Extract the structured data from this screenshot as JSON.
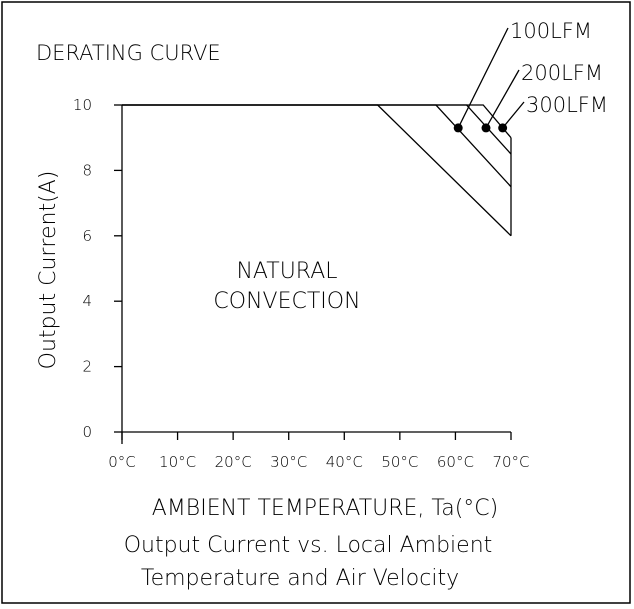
{
  "chart_data": {
    "type": "line",
    "title": "DERATING CURVE",
    "xlabel": "AMBIENT TEMPERATURE, Ta(°C)",
    "ylabel": "Output Current(A)",
    "caption": [
      "Output Current vs. Local Ambient",
      "Temperature and Air Velocity"
    ],
    "x_ticks": [
      0,
      10,
      20,
      30,
      40,
      50,
      60,
      70
    ],
    "x_tick_labels": [
      "0°C",
      "10°C",
      "20°C",
      "30°C",
      "40°C",
      "50°C",
      "60°C",
      "70°C"
    ],
    "y_ticks": [
      0,
      2,
      4,
      6,
      8,
      10
    ],
    "y_tick_labels": [
      "0",
      "2",
      "4",
      "6",
      "8",
      "10"
    ],
    "xlim": [
      0,
      70
    ],
    "ylim": [
      0,
      10
    ],
    "grid": false,
    "region_label": [
      "NATURAL",
      "CONVECTION"
    ],
    "series": [
      {
        "name": "NATURAL CONVECTION",
        "x": [
          0,
          46,
          70
        ],
        "y": [
          10,
          10,
          6
        ]
      },
      {
        "name": "100LFM",
        "x": [
          0,
          56.5,
          70
        ],
        "y": [
          10,
          10,
          7.5
        ]
      },
      {
        "name": "200LFM",
        "x": [
          0,
          62,
          70
        ],
        "y": [
          10,
          10,
          8.5
        ]
      },
      {
        "name": "300LFM",
        "x": [
          0,
          65,
          70
        ],
        "y": [
          10,
          10,
          9
        ]
      }
    ],
    "markers": [
      {
        "series": "100LFM",
        "x": 60.5,
        "y": 9.3,
        "label": "100LFM"
      },
      {
        "series": "200LFM",
        "x": 65.5,
        "y": 9.3,
        "label": "200LFM"
      },
      {
        "series": "300LFM",
        "x": 68.5,
        "y": 9.3,
        "label": "300LFM"
      }
    ]
  }
}
